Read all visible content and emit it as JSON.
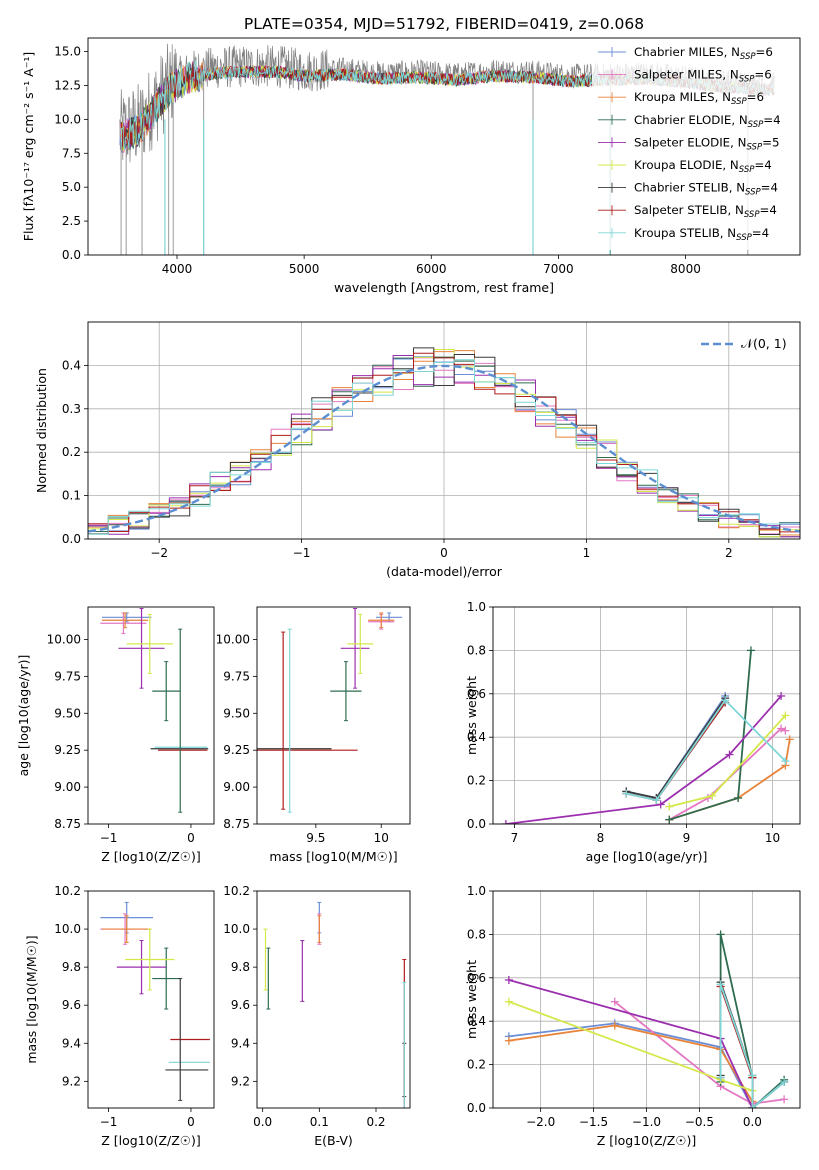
{
  "figure": {
    "title": "PLATE=0354, MJD=51792, FIBERID=0419, z=0.068"
  },
  "colors": {
    "Chabrier MILES": "#6b8ed6",
    "Salpeter MILES": "#e377c2",
    "Kroupa MILES": "#e8833a",
    "Chabrier ELODIE": "#2e6b4f",
    "Salpeter ELODIE": "#9b2fae",
    "Kroupa ELODIE": "#d4e84a",
    "Chabrier STELIB": "#3a3a3a",
    "Salpeter STELIB": "#b01c1c",
    "Kroupa STELIB": "#7fd6d6",
    "data": "#808080",
    "normal": "#5b8fd1"
  },
  "chart_data": [
    {
      "id": "spectrum",
      "type": "line",
      "title": "PLATE=0354, MJD=51792, FIBERID=0419, z=0.068",
      "xlabel": "wavelength [Angstrom, rest frame]",
      "ylabel": "Flux [fλ10⁻¹⁷ erg cm⁻² s⁻¹ A⁻¹]",
      "xlim": [
        3300,
        8900
      ],
      "ylim": [
        0,
        16
      ],
      "xticks": [
        4000,
        5000,
        6000,
        7000,
        8000
      ],
      "yticks": [
        0.0,
        2.5,
        5.0,
        7.5,
        10.0,
        12.5,
        15.0
      ],
      "ytick_labels": [
        "0.0",
        "2.5",
        "5.0",
        "7.5",
        "10.0",
        "12.5",
        "15.0"
      ],
      "legend": [
        "Chabrier MILES, N_SSP=6",
        "Salpeter MILES, N_SSP=6",
        "Kroupa MILES, N_SSP=6",
        "Chabrier ELODIE, N_SSP=4",
        "Salpeter ELODIE, N_SSP=5",
        "Kroupa ELODIE, N_SSP=4",
        "Chabrier STELIB, N_SSP=4",
        "Salpeter STELIB, N_SSP=4",
        "Kroupa STELIB, N_SSP=4"
      ],
      "legend_placement": "upper-right",
      "continuum": {
        "x": [
          3550,
          3700,
          3850,
          3950,
          4100,
          4300,
          4500,
          4800,
          5000,
          5300,
          5600,
          5900,
          6200,
          6500,
          6800,
          7100,
          7400,
          7700,
          8000,
          8300,
          8600
        ],
        "y": [
          9.0,
          9.6,
          11.5,
          12.7,
          13.5,
          13.8,
          13.9,
          13.9,
          13.6,
          13.7,
          13.4,
          13.5,
          13.3,
          13.6,
          13.5,
          13.2,
          13.3,
          13.4,
          13.1,
          12.8,
          12.6
        ]
      }
    },
    {
      "id": "residuals",
      "type": "histogram",
      "xlabel": "(data-model)/error",
      "ylabel": "Normed distribution",
      "xlim": [
        -2.5,
        2.5
      ],
      "ylim": [
        0,
        0.5
      ],
      "xticks": [
        -2,
        -1,
        0,
        1,
        2
      ],
      "yticks": [
        0.0,
        0.1,
        0.2,
        0.3,
        0.4
      ],
      "ytick_labels": [
        "0.0",
        "0.1",
        "0.2",
        "0.3",
        "0.4"
      ],
      "legend": [
        "𝒩(0, 1)"
      ],
      "legend_placement": "upper-right",
      "grid": true,
      "bins": [
        -2.5,
        2.5,
        35
      ]
    },
    {
      "id": "age-vs-z",
      "type": "errorbar",
      "xlabel": "Z [log10(Z/Z☉)]",
      "ylabel": "age  [log10(age/yr)]",
      "xlim": [
        -1.25,
        0.28
      ],
      "ylim": [
        8.75,
        10.22
      ],
      "xticks": [
        -1,
        0
      ],
      "yticks": [
        8.75,
        9.0,
        9.25,
        9.5,
        9.75,
        10.0
      ],
      "ytick_labels": [
        "8.75",
        "9.00",
        "9.25",
        "9.50",
        "9.75",
        "10.00"
      ],
      "points": [
        {
          "model": "Chabrier MILES",
          "x": -0.78,
          "xerr": 0.3,
          "y": 10.15,
          "yerr": 0.03
        },
        {
          "model": "Salpeter MILES",
          "x": -0.82,
          "xerr": 0.28,
          "y": 10.11,
          "yerr": 0.07
        },
        {
          "model": "Kroupa MILES",
          "x": -0.8,
          "xerr": 0.28,
          "y": 10.13,
          "yerr": 0.05
        },
        {
          "model": "Chabrier ELODIE",
          "x": -0.3,
          "xerr": 0.17,
          "y": 9.65,
          "yerr": 0.2
        },
        {
          "model": "Salpeter ELODIE",
          "x": -0.6,
          "xerr": 0.28,
          "y": 9.94,
          "yerr": 0.27
        },
        {
          "model": "Kroupa ELODIE",
          "x": -0.5,
          "xerr": 0.28,
          "y": 9.97,
          "yerr": 0.2
        },
        {
          "model": "Chabrier STELIB",
          "x": -0.14,
          "xerr": 0.35,
          "y": 9.26,
          "yerr": 0.0
        },
        {
          "model": "Salpeter STELIB",
          "x": -0.1,
          "xerr": 0.3,
          "y": 9.25,
          "yerr": 0.0
        },
        {
          "model": "Kroupa STELIB",
          "x": -0.12,
          "xerr": 0.32,
          "y": 9.27,
          "yerr": 0.0
        },
        {
          "model": "Chabrier ELODIE",
          "x": -0.13,
          "xerr": 0.0,
          "y": 9.45,
          "yerr": 0.62
        }
      ]
    },
    {
      "id": "age-vs-mass",
      "type": "errorbar",
      "xlabel": "mass [log10(M/M☉)]",
      "ylabel": "",
      "xlim": [
        9.05,
        10.22
      ],
      "ylim": [
        8.75,
        10.22
      ],
      "xticks": [
        9.5,
        10.0
      ],
      "yticks": [
        8.75,
        9.0,
        9.25,
        9.5,
        9.75,
        10.0
      ],
      "ytick_labels": [
        "8.75",
        "9.00",
        "9.25",
        "9.50",
        "9.75",
        "10.00"
      ],
      "points": [
        {
          "model": "Chabrier MILES",
          "x": 10.06,
          "xerr": 0.1,
          "y": 10.15,
          "yerr": 0.03
        },
        {
          "model": "Salpeter MILES",
          "x": 10.0,
          "xerr": 0.1,
          "y": 10.12,
          "yerr": 0.05
        },
        {
          "model": "Kroupa MILES",
          "x": 10.0,
          "xerr": 0.1,
          "y": 10.13,
          "yerr": 0.05
        },
        {
          "model": "Chabrier ELODIE",
          "x": 9.73,
          "xerr": 0.12,
          "y": 9.65,
          "yerr": 0.2
        },
        {
          "model": "Salpeter ELODIE",
          "x": 9.8,
          "xerr": 0.11,
          "y": 9.94,
          "yerr": 0.27
        },
        {
          "model": "Kroupa ELODIE",
          "x": 9.84,
          "xerr": 0.1,
          "y": 9.97,
          "yerr": 0.2
        },
        {
          "model": "Chabrier STELIB",
          "x": 9.26,
          "xerr": 0.36,
          "y": 9.26,
          "yerr": 0.0
        },
        {
          "model": "Salpeter STELIB",
          "x": 9.42,
          "xerr": 0.4,
          "y": 9.25,
          "yerr": 0.0
        },
        {
          "model": "Kroupa STELIB",
          "x": 9.3,
          "xerr": 0.0,
          "y": 9.45,
          "yerr": 0.62
        },
        {
          "model": "Salpeter STELIB",
          "x": 9.25,
          "xerr": 0.0,
          "y": 9.45,
          "yerr": 0.6
        }
      ]
    },
    {
      "id": "mass-weight-vs-age",
      "type": "line",
      "xlabel": "age  [log10(age/yr)]",
      "ylabel": "mass weight",
      "xlim": [
        6.75,
        10.32
      ],
      "ylim": [
        0,
        1
      ],
      "xticks": [
        7,
        8,
        9,
        10
      ],
      "yticks": [
        0.0,
        0.2,
        0.4,
        0.6,
        0.8,
        1.0
      ],
      "ytick_labels": [
        "0.0",
        "0.2",
        "0.4",
        "0.6",
        "0.8",
        "1.0"
      ],
      "grid": true,
      "series": [
        {
          "model": "Chabrier MILES",
          "x": [
            8.3,
            8.65,
            9.45
          ],
          "y": [
            0.15,
            0.12,
            0.59
          ]
        },
        {
          "model": "Salpeter MILES",
          "x": [
            8.8,
            9.25,
            10.1,
            10.15
          ],
          "y": [
            0.02,
            0.12,
            0.44,
            0.43
          ]
        },
        {
          "model": "Kroupa MILES",
          "x": [
            8.8,
            9.6,
            10.15,
            10.2
          ],
          "y": [
            0.02,
            0.12,
            0.27,
            0.39
          ]
        },
        {
          "model": "Chabrier ELODIE",
          "x": [
            8.8,
            9.6,
            9.75
          ],
          "y": [
            0.02,
            0.12,
            0.8
          ]
        },
        {
          "model": "Salpeter ELODIE",
          "x": [
            6.9,
            8.7,
            9.5,
            10.1
          ],
          "y": [
            0.0,
            0.09,
            0.32,
            0.59
          ]
        },
        {
          "model": "Kroupa ELODIE",
          "x": [
            8.8,
            9.3,
            10.15
          ],
          "y": [
            0.08,
            0.13,
            0.5
          ]
        },
        {
          "model": "Chabrier STELIB",
          "x": [
            8.3,
            8.65,
            9.45
          ],
          "y": [
            0.15,
            0.12,
            0.58
          ]
        },
        {
          "model": "Salpeter STELIB",
          "x": [
            8.3,
            8.65,
            9.45
          ],
          "y": [
            0.14,
            0.11,
            0.56
          ]
        },
        {
          "model": "Kroupa STELIB",
          "x": [
            8.3,
            8.65,
            9.45,
            10.15
          ],
          "y": [
            0.14,
            0.11,
            0.57,
            0.29
          ]
        }
      ]
    },
    {
      "id": "mass-vs-z",
      "type": "errorbar",
      "xlabel": "Z [log10(Z/Z☉)]",
      "ylabel": "mass [log10(M/M☉)]",
      "xlim": [
        -1.25,
        0.28
      ],
      "ylim": [
        9.06,
        10.2
      ],
      "xticks": [
        -1,
        0
      ],
      "yticks": [
        9.2,
        9.4,
        9.6,
        9.8,
        10.0,
        10.2
      ],
      "ytick_labels": [
        "9.2",
        "9.4",
        "9.6",
        "9.8",
        "10.0",
        "10.2"
      ],
      "points": [
        {
          "model": "Chabrier MILES",
          "x": -0.78,
          "xerr": 0.32,
          "y": 10.06,
          "yerr": 0.08
        },
        {
          "model": "Salpeter MILES",
          "x": -0.8,
          "xerr": 0.3,
          "y": 10.0,
          "yerr": 0.08
        },
        {
          "model": "Kroupa MILES",
          "x": -0.78,
          "xerr": 0.3,
          "y": 10.0,
          "yerr": 0.07
        },
        {
          "model": "Chabrier ELODIE",
          "x": -0.3,
          "xerr": 0.17,
          "y": 9.74,
          "yerr": 0.16
        },
        {
          "model": "Salpeter ELODIE",
          "x": -0.6,
          "xerr": 0.3,
          "y": 9.8,
          "yerr": 0.14
        },
        {
          "model": "Kroupa ELODIE",
          "x": -0.5,
          "xerr": 0.3,
          "y": 9.84,
          "yerr": 0.16
        },
        {
          "model": "Chabrier STELIB",
          "x": -0.05,
          "xerr": 0.26,
          "y": 9.26,
          "yerr": 0.0
        },
        {
          "model": "Salpeter STELIB",
          "x": -0.01,
          "xerr": 0.24,
          "y": 9.42,
          "yerr": 0.0
        },
        {
          "model": "Kroupa STELIB",
          "x": -0.02,
          "xerr": 0.25,
          "y": 9.3,
          "yerr": 0.0
        },
        {
          "model": "Chabrier STELIB",
          "x": -0.13,
          "xerr": 0.0,
          "y": 9.42,
          "yerr": 0.32
        }
      ]
    },
    {
      "id": "mass-vs-ebv",
      "type": "errorbar",
      "xlabel": "E(B-V)",
      "ylabel": "",
      "xlim": [
        -0.01,
        0.26
      ],
      "ylim": [
        9.06,
        10.2
      ],
      "xticks": [
        0.0,
        0.1,
        0.2
      ],
      "xtick_labels": [
        "0.0",
        "0.1",
        "0.2"
      ],
      "yticks": [
        9.2,
        9.4,
        9.6,
        9.8,
        10.0,
        10.2
      ],
      "ytick_labels": [
        "9.2",
        "9.4",
        "9.6",
        "9.8",
        "10.0",
        "10.2"
      ],
      "points": [
        {
          "model": "Chabrier MILES",
          "x": 0.1,
          "xerr": 0.0,
          "y": 10.06,
          "yerr": 0.08
        },
        {
          "model": "Salpeter MILES",
          "x": 0.1,
          "xerr": 0.0,
          "y": 10.0,
          "yerr": 0.08
        },
        {
          "model": "Kroupa MILES",
          "x": 0.1,
          "xerr": 0.0,
          "y": 10.0,
          "yerr": 0.07
        },
        {
          "model": "Chabrier ELODIE",
          "x": 0.01,
          "xerr": 0.0,
          "y": 9.74,
          "yerr": 0.16
        },
        {
          "model": "Salpeter ELODIE",
          "x": 0.07,
          "xerr": 0.0,
          "y": 9.78,
          "yerr": 0.16
        },
        {
          "model": "Kroupa ELODIE",
          "x": 0.005,
          "xerr": 0.0,
          "y": 9.84,
          "yerr": 0.16
        },
        {
          "model": "Chabrier STELIB",
          "x": 0.25,
          "xerr": 0.0,
          "y": 9.26,
          "yerr": 0.14
        },
        {
          "model": "Salpeter STELIB",
          "x": 0.25,
          "xerr": 0.0,
          "y": 9.42,
          "yerr": 0.42
        },
        {
          "model": "Kroupa STELIB",
          "x": 0.25,
          "xerr": 0.0,
          "y": 9.3,
          "yerr": 0.42
        }
      ]
    },
    {
      "id": "mass-weight-vs-z",
      "type": "line",
      "xlabel": "Z [log10(Z/Z☉)]",
      "ylabel": "mass weight",
      "xlim": [
        -2.45,
        0.45
      ],
      "ylim": [
        0,
        1
      ],
      "xticks": [
        -2.0,
        -1.5,
        -1.0,
        -0.5,
        0.0
      ],
      "xtick_labels": [
        "−2.0",
        "−1.5",
        "−1.0",
        "−0.5",
        "0.0"
      ],
      "yticks": [
        0.0,
        0.2,
        0.4,
        0.6,
        0.8,
        1.0
      ],
      "ytick_labels": [
        "0.0",
        "0.2",
        "0.4",
        "0.6",
        "0.8",
        "1.0"
      ],
      "grid": true,
      "series": [
        {
          "model": "Chabrier MILES",
          "x": [
            -2.3,
            -1.3,
            -0.3,
            0.0,
            0.3
          ],
          "y": [
            0.33,
            0.39,
            0.28,
            0.0,
            0.12
          ]
        },
        {
          "model": "Salpeter MILES",
          "x": [
            -1.3,
            -0.3,
            0.0,
            0.3
          ],
          "y": [
            0.49,
            0.1,
            0.02,
            0.04
          ]
        },
        {
          "model": "Kroupa MILES",
          "x": [
            -2.3,
            -1.3,
            -0.3,
            0.0
          ],
          "y": [
            0.31,
            0.38,
            0.27,
            0.03
          ]
        },
        {
          "model": "Chabrier ELODIE",
          "x": [
            -0.3,
            -0.3,
            0.0,
            0.0,
            0.3
          ],
          "y": [
            0.12,
            0.8,
            0.14,
            0.0,
            0.13
          ]
        },
        {
          "model": "Salpeter ELODIE",
          "x": [
            -2.3,
            -0.3,
            0.0
          ],
          "y": [
            0.59,
            0.32,
            0.0
          ]
        },
        {
          "model": "Kroupa ELODIE",
          "x": [
            -2.3,
            -0.3,
            0.0
          ],
          "y": [
            0.49,
            0.13,
            0.08
          ]
        },
        {
          "model": "Chabrier STELIB",
          "x": [
            -0.3,
            -0.3,
            0.0,
            0.0,
            0.3
          ],
          "y": [
            0.15,
            0.58,
            0.15,
            0.0,
            0.12
          ]
        },
        {
          "model": "Salpeter STELIB",
          "x": [
            -0.3,
            -0.3,
            0.0,
            0.0
          ],
          "y": [
            0.14,
            0.56,
            0.14,
            0.0
          ]
        },
        {
          "model": "Kroupa STELIB",
          "x": [
            -0.3,
            -0.3,
            0.0,
            0.0,
            0.3
          ],
          "y": [
            0.14,
            0.57,
            0.15,
            0.0,
            0.12
          ]
        }
      ]
    }
  ]
}
